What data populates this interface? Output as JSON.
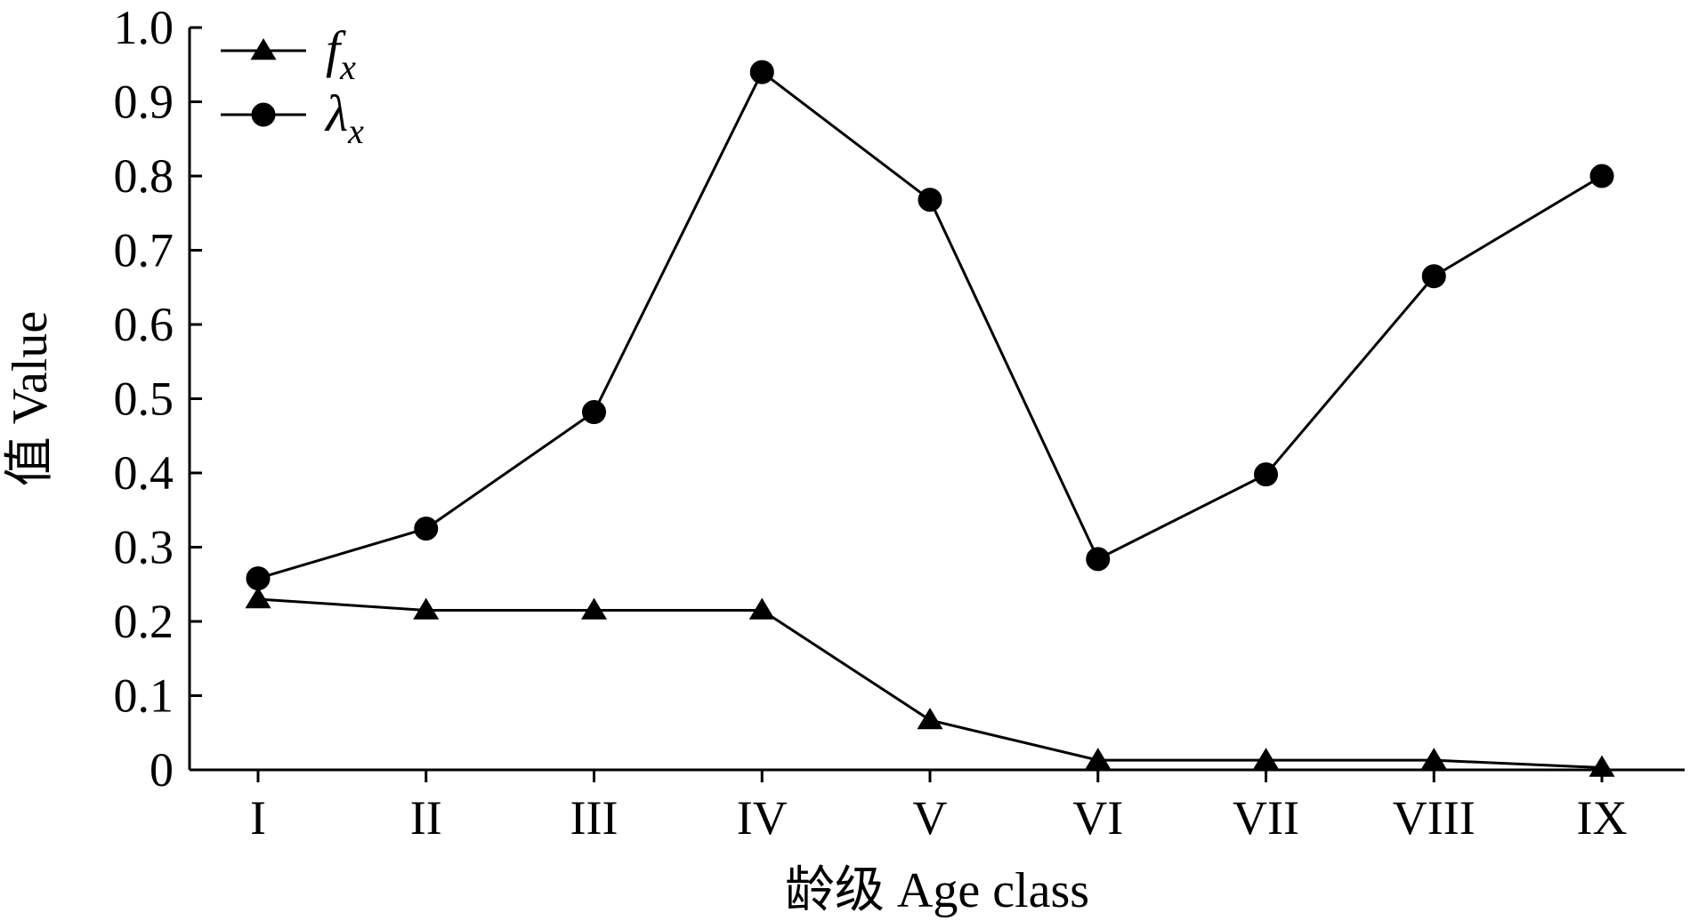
{
  "chart_data": {
    "type": "line",
    "categories": [
      "I",
      "II",
      "III",
      "IV",
      "V",
      "VI",
      "VII",
      "VIII",
      "IX"
    ],
    "series": [
      {
        "name": "f",
        "subscript": "x",
        "marker": "triangle",
        "values": [
          0.23,
          0.215,
          0.215,
          0.215,
          0.067,
          0.013,
          0.013,
          0.013,
          0.003
        ]
      },
      {
        "name": "λ",
        "subscript": "x",
        "marker": "circle",
        "values": [
          0.258,
          0.325,
          0.482,
          0.94,
          0.768,
          0.284,
          0.398,
          0.665,
          0.8
        ]
      }
    ],
    "xlabel": "龄级 Age class",
    "ylabel": "值 Value",
    "ylim": [
      0,
      1.0
    ],
    "yticks": [
      "0",
      "0.1",
      "0.2",
      "0.3",
      "0.4",
      "0.5",
      "0.6",
      "0.7",
      "0.8",
      "0.9",
      "1.0"
    ],
    "grid": false,
    "legend": "top-left"
  }
}
